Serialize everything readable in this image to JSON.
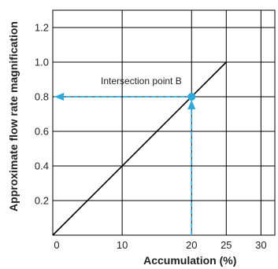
{
  "chart_data": {
    "type": "line",
    "xlabel": "Accumulation (%)",
    "ylabel": "Approximate flow rate magnification",
    "xlim": [
      0,
      32
    ],
    "ylim": [
      0,
      1.3
    ],
    "x_ticks": [
      0,
      10,
      20,
      25,
      30
    ],
    "x_tick_labels": [
      "0",
      "10",
      "20",
      "25",
      "30"
    ],
    "y_ticks": [
      0.2,
      0.4,
      0.6,
      0.8,
      1.0,
      1.2
    ],
    "y_tick_labels": [
      "0.2",
      "0.4",
      "0.6",
      "0.8",
      "1.0",
      "1.2"
    ],
    "grid": true,
    "series": [
      {
        "x": [
          0,
          25
        ],
        "y": [
          0,
          1.0
        ],
        "color": "#000000"
      }
    ],
    "annotation": {
      "label": "Intersection point B",
      "point": {
        "x": 20,
        "y": 0.8
      },
      "color": "#29abe2"
    }
  }
}
